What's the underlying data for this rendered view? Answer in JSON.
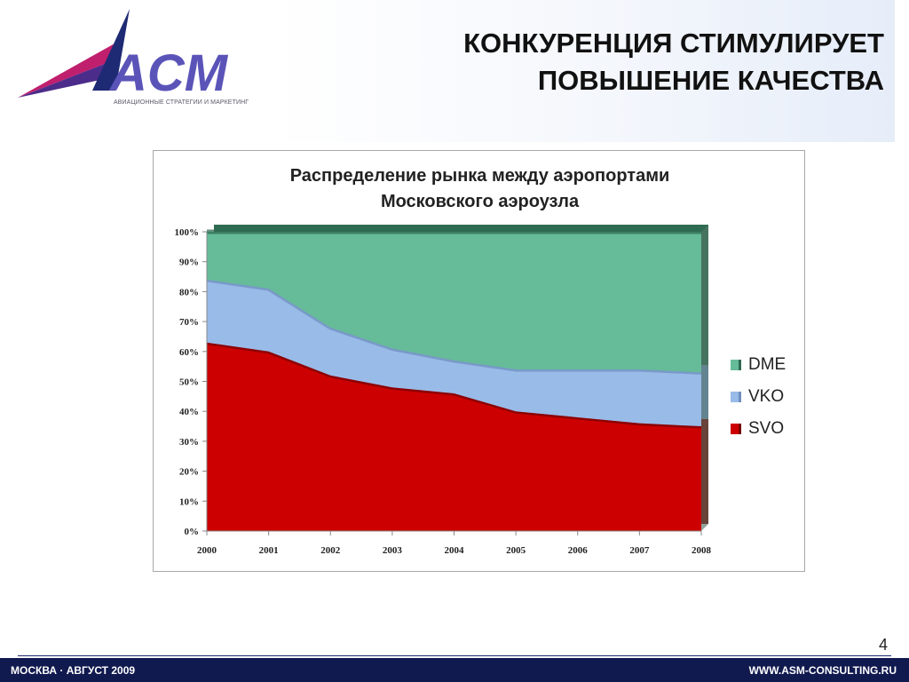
{
  "logo": {
    "text": "ACM",
    "tagline": "АВИАЦИОННЫЕ СТРАТЕГИИ И МАРКЕТИНГ"
  },
  "slide": {
    "title_line1": "КОНКУРЕНЦИЯ СТИМУЛИРУЕТ",
    "title_line2": "ПОВЫШЕНИЕ КАЧЕСТВА",
    "page_number": "4"
  },
  "footer": {
    "left": "МОСКВА · АВГУСТ 2009",
    "right": "WWW.ASM-CONSULTING.RU"
  },
  "colors": {
    "svo": "#cc0000",
    "vko": "#99bbe8",
    "dme": "#66bb99",
    "footer": "#111a4f"
  },
  "chart_data": {
    "type": "area",
    "stacked": "percent",
    "title_line1": "Распределение рынка между аэропортами",
    "title_line2": "Московского аэроузла",
    "categories": [
      "2000",
      "2001",
      "2002",
      "2003",
      "2004",
      "2005",
      "2006",
      "2007",
      "2008"
    ],
    "series": [
      {
        "name": "SVO",
        "values": [
          63,
          60,
          52,
          48,
          46,
          40,
          38,
          36,
          35
        ]
      },
      {
        "name": "VKO",
        "values": [
          21,
          21,
          16,
          13,
          11,
          14,
          16,
          18,
          18
        ]
      },
      {
        "name": "DME",
        "values": [
          16,
          19,
          32,
          39,
          43,
          46,
          46,
          46,
          47
        ]
      }
    ],
    "legend": [
      "DME",
      "VKO",
      "SVO"
    ],
    "legend_position": "right",
    "y_ticks": [
      "0%",
      "10%",
      "20%",
      "30%",
      "40%",
      "50%",
      "60%",
      "70%",
      "80%",
      "90%",
      "100%"
    ],
    "ylim": [
      0,
      100
    ],
    "grid": false
  }
}
